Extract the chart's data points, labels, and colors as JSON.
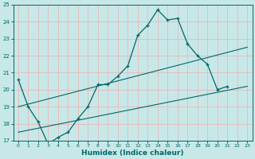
{
  "xlabel": "Humidex (Indice chaleur)",
  "bg_color": "#c8e8e8",
  "grid_color": "#e8b8b8",
  "line_color": "#006868",
  "xlim": [
    -0.5,
    23.5
  ],
  "ylim": [
    17,
    25
  ],
  "yticks": [
    17,
    18,
    19,
    20,
    21,
    22,
    23,
    24,
    25
  ],
  "xticks": [
    0,
    1,
    2,
    3,
    4,
    5,
    6,
    7,
    8,
    9,
    10,
    11,
    12,
    13,
    14,
    15,
    16,
    17,
    18,
    19,
    20,
    21,
    22,
    23
  ],
  "line1_x": [
    0,
    1,
    2,
    3,
    4,
    5,
    6,
    7,
    8,
    9,
    10,
    11,
    12,
    13,
    14,
    15,
    16,
    17,
    18,
    19,
    20,
    21
  ],
  "line1_y": [
    20.6,
    19.0,
    18.1,
    16.8,
    17.2,
    17.5,
    18.3,
    19.0,
    20.3,
    20.3,
    20.8,
    21.4,
    23.2,
    23.8,
    24.7,
    24.1,
    24.2,
    22.7,
    22.0,
    21.5,
    20.0,
    20.2
  ],
  "line2_x": [
    0,
    23
  ],
  "line2_y": [
    19.0,
    22.5
  ],
  "line3_x": [
    0,
    23
  ],
  "line3_y": [
    17.5,
    20.2
  ]
}
